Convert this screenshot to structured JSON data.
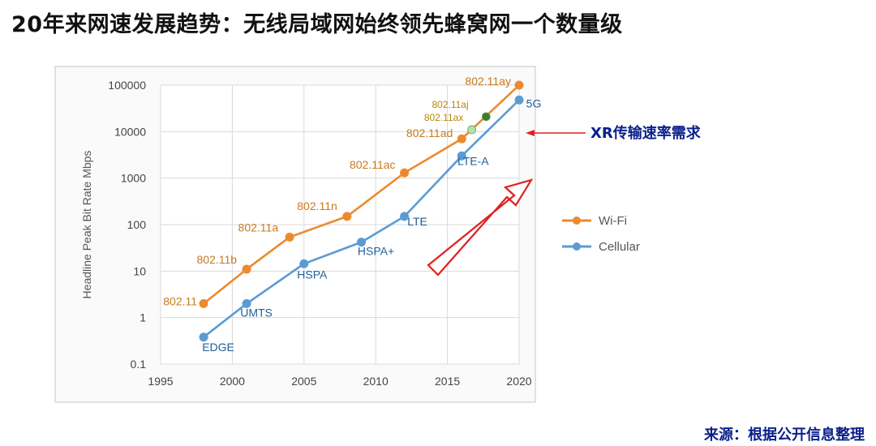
{
  "page": {
    "title": "20年来网速发展趋势：无线局域网始终领先蜂窝网一个数量级",
    "xr_label": "XR传输速率需求",
    "source": "来源：根据公开信息整理"
  },
  "chart_data": {
    "type": "line",
    "ylabel": "Headline Peak Bit Rate Mbps",
    "y_scale": "log",
    "ylim": [
      0.1,
      100000
    ],
    "xlim": [
      1995,
      2020
    ],
    "x_ticks": [
      "1995",
      "2000",
      "2005",
      "2010",
      "2015",
      "2020"
    ],
    "y_ticks": [
      "0.1",
      "1",
      "10",
      "100",
      "1000",
      "10000",
      "100000"
    ],
    "grid": true,
    "legend_position": "right",
    "series": [
      {
        "name": "Wi-Fi",
        "color": "#ec8a2e",
        "points": [
          {
            "x": 1998,
            "y": 2,
            "label": "802.11"
          },
          {
            "x": 2001,
            "y": 11,
            "label": "802.11b"
          },
          {
            "x": 2004,
            "y": 54,
            "label": "802.11a"
          },
          {
            "x": 2008,
            "y": 150,
            "label": "802.11n"
          },
          {
            "x": 2012,
            "y": 1300,
            "label": "802.11ac"
          },
          {
            "x": 2016,
            "y": 7000,
            "label": "802.11ad"
          },
          {
            "x": 2020,
            "y": 100000,
            "label": "802.11ay"
          }
        ]
      },
      {
        "name": "Cellular",
        "color": "#5b9bd5",
        "points": [
          {
            "x": 1998,
            "y": 0.38,
            "label": "EDGE"
          },
          {
            "x": 2001,
            "y": 2,
            "label": "UMTS"
          },
          {
            "x": 2005,
            "y": 14.4,
            "label": "HSPA"
          },
          {
            "x": 2009,
            "y": 42,
            "label": "HSPA+"
          },
          {
            "x": 2012,
            "y": 150,
            "label": "LTE"
          },
          {
            "x": 2016,
            "y": 3000,
            "label": "LTE-A"
          },
          {
            "x": 2020,
            "y": 48000,
            "label": "5G"
          }
        ]
      }
    ],
    "extra_points": [
      {
        "x": 2016.7,
        "y": 11000,
        "label": "802.11aj",
        "color": "#b5e0a8"
      },
      {
        "x": 2017.7,
        "y": 21000,
        "label": "802.11ax",
        "color": "#3a7d2a"
      }
    ]
  },
  "colors": {
    "wifi": "#ec8a2e",
    "cellular": "#5b9bd5",
    "wifi_label": "#c97a1f",
    "cell_label": "#1f5f98",
    "small_label": "#b8860b",
    "arrow_red": "#e02020",
    "title_color": "#111111",
    "blue_text": "#0a1f8a"
  }
}
